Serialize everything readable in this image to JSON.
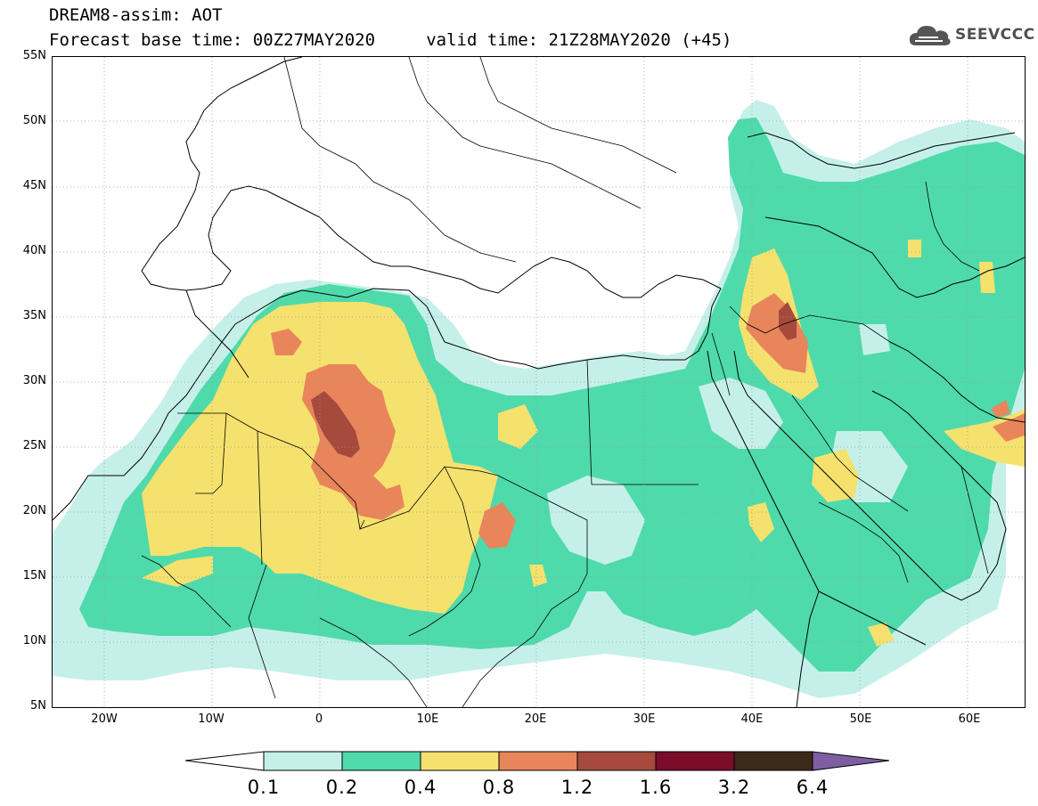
{
  "header": {
    "title_line1": "DREAM8-assim: AOT",
    "title_line2": "Forecast base time: 00Z27MAY2020     valid time: 21Z28MAY2020 (+45)"
  },
  "logo": {
    "text": "SEEVCCC",
    "icon": "cloud-icon"
  },
  "map": {
    "product": "Aerosol optical thickness forecast",
    "lat_ticks": [
      "55N",
      "50N",
      "45N",
      "40N",
      "35N",
      "30N",
      "25N",
      "20N",
      "15N",
      "10N",
      "5N"
    ],
    "lon_ticks": [
      "20W",
      "10W",
      "0",
      "10E",
      "20E",
      "30E",
      "40E",
      "50E",
      "60E"
    ],
    "lat_range": [
      5,
      55
    ],
    "lon_range": [
      -25,
      65
    ],
    "gridlines": "dotted"
  },
  "legend": {
    "thresholds": [
      "0.1",
      "0.2",
      "0.4",
      "0.8",
      "1.2",
      "1.6",
      "3.2",
      "6.4"
    ],
    "colors": [
      "#ffffff",
      "#c5f0ea",
      "#4fdaab",
      "#f5e16e",
      "#e9855b",
      "#a64a3e",
      "#7a0d2a",
      "#3b2a1a",
      "#7d5ea3"
    ]
  }
}
